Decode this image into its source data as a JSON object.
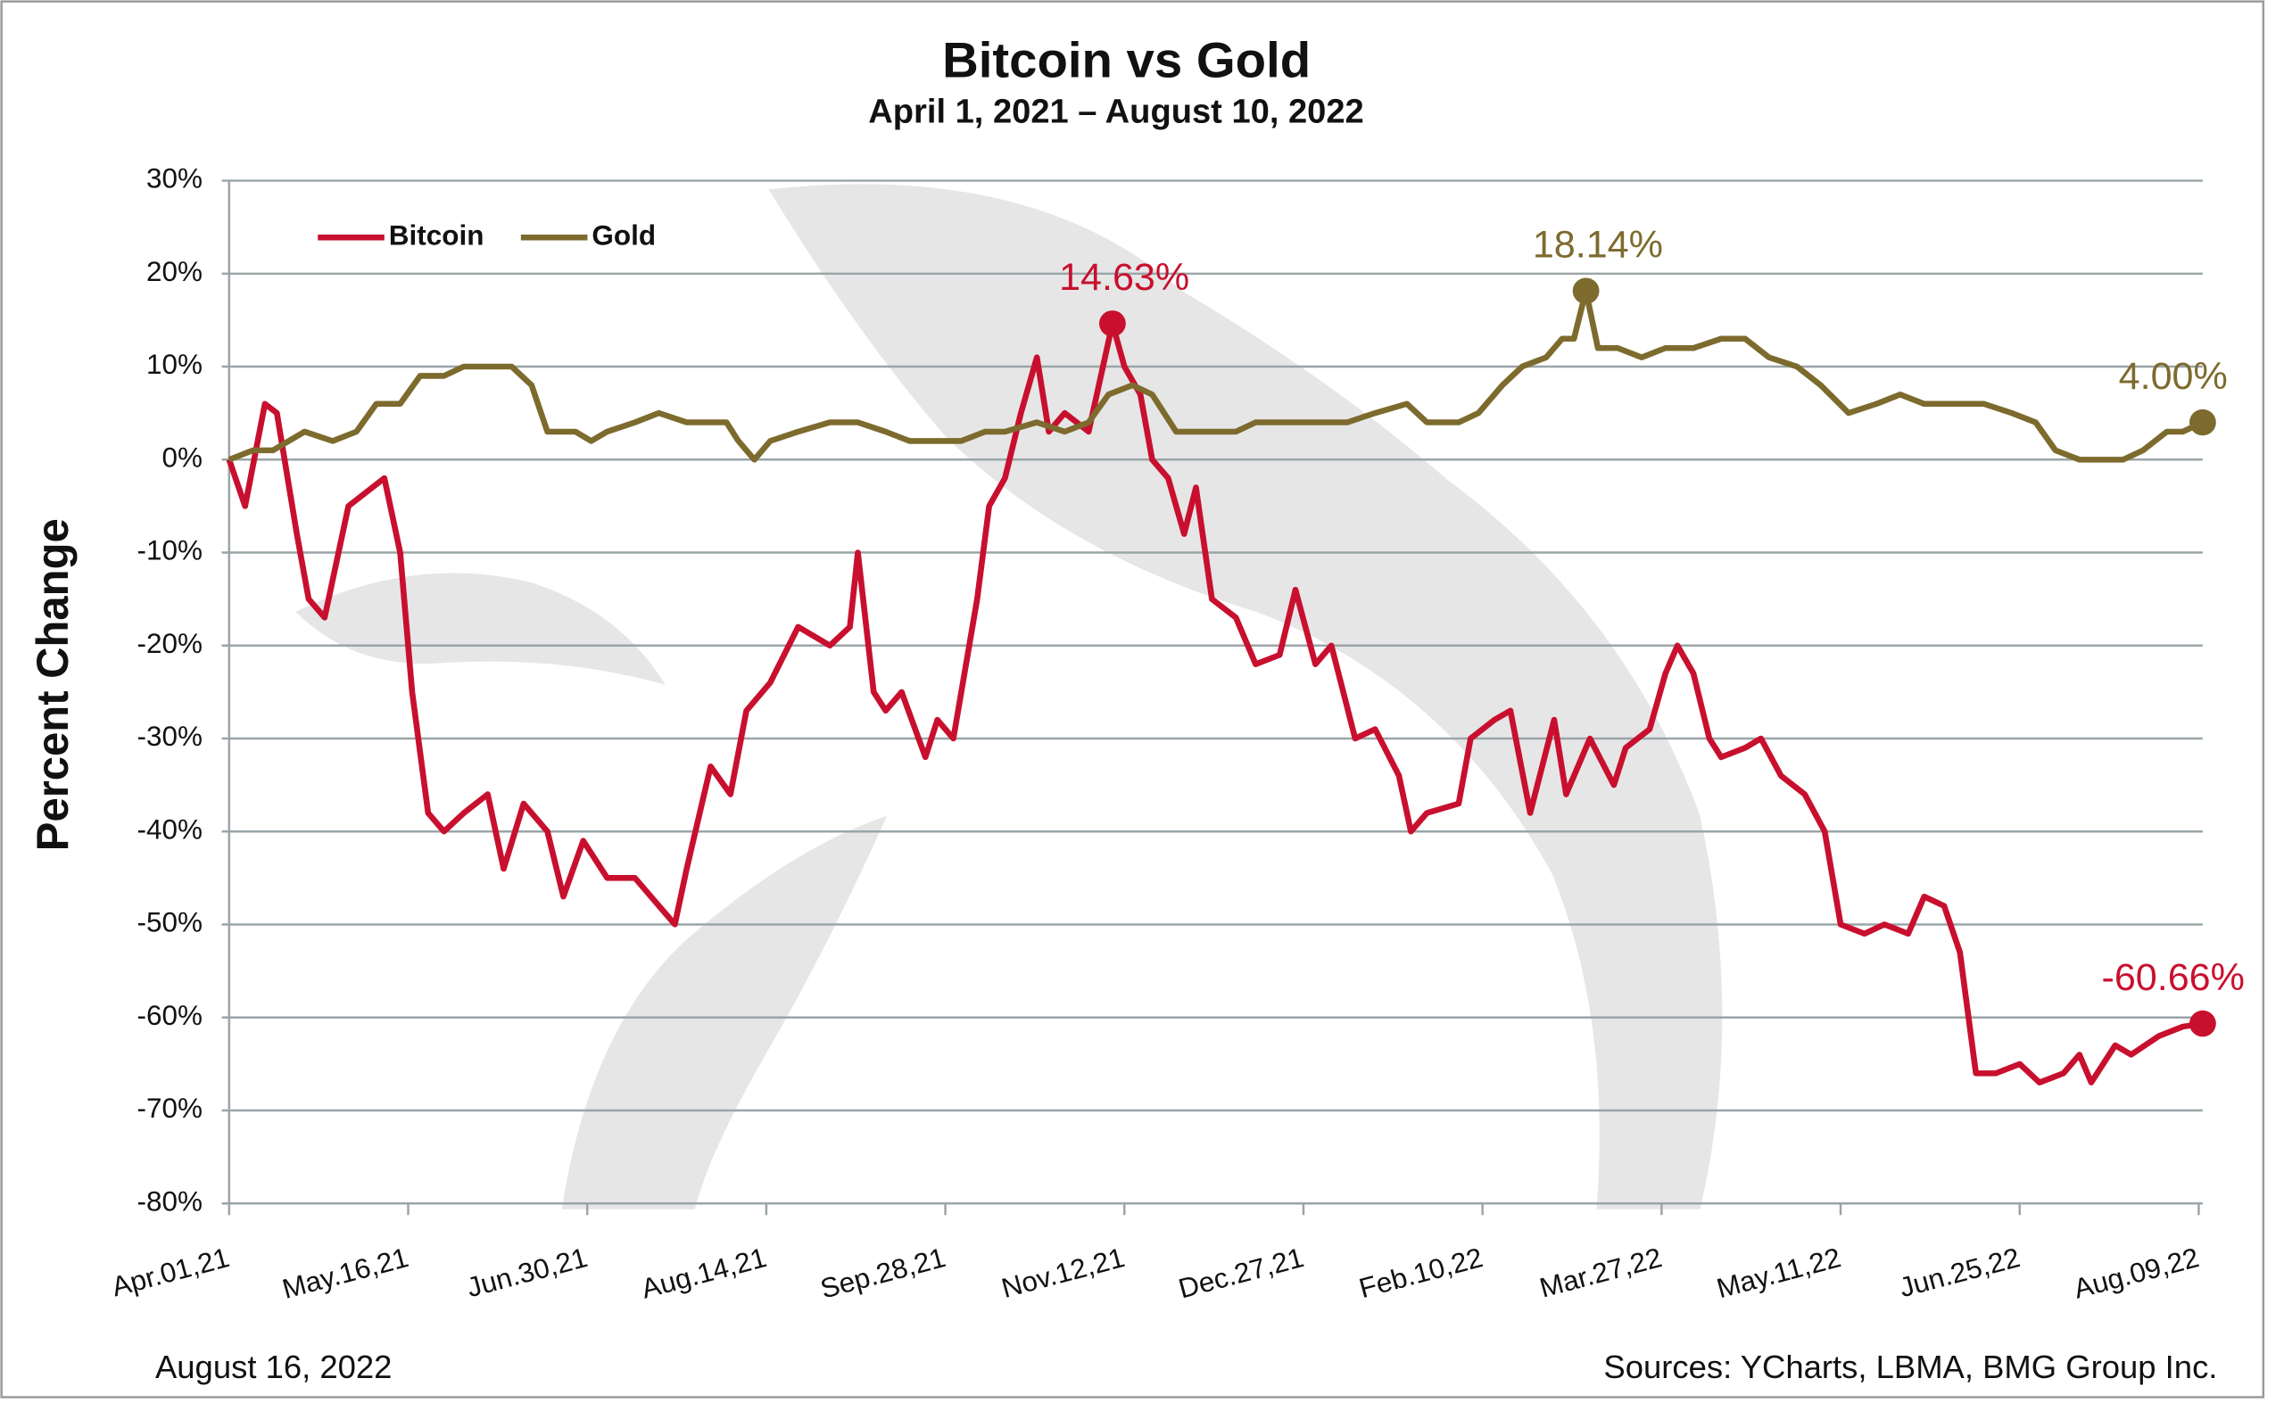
{
  "chart_data": {
    "type": "line",
    "title": "Bitcoin vs Gold",
    "subtitle": "April 1, 2021 – August 10, 2022",
    "ylabel": "Percent Change",
    "date": "August 16, 2022",
    "source": "Sources: YCharts, LBMA, BMG Group Inc.",
    "legend": "top-left",
    "grid": true,
    "xlim": [
      "2021-04-01",
      "2022-08-10"
    ],
    "xticks": [
      {
        "value": "2021-04-01",
        "label": "Apr.01,21"
      },
      {
        "value": "2021-05-16",
        "label": "May.16,21"
      },
      {
        "value": "2021-06-30",
        "label": "Jun.30,21"
      },
      {
        "value": "2021-08-14",
        "label": "Aug.14,21"
      },
      {
        "value": "2021-09-28",
        "label": "Sep.28,21"
      },
      {
        "value": "2021-11-12",
        "label": "Nov.12,21"
      },
      {
        "value": "2021-12-27",
        "label": "Dec.27,21"
      },
      {
        "value": "2022-02-10",
        "label": "Feb.10,22"
      },
      {
        "value": "2022-03-27",
        "label": "Mar.27,22"
      },
      {
        "value": "2022-05-11",
        "label": "May.11,22"
      },
      {
        "value": "2022-06-25",
        "label": "Jun.25,22"
      },
      {
        "value": "2022-08-09",
        "label": "Aug.09,22"
      }
    ],
    "ylim": [
      -80,
      30
    ],
    "yticks": [
      {
        "value": 30,
        "label": "30%"
      },
      {
        "value": 20,
        "label": "20%"
      },
      {
        "value": 10,
        "label": "10%"
      },
      {
        "value": 0,
        "label": "0%"
      },
      {
        "value": -10,
        "label": "-10%"
      },
      {
        "value": -20,
        "label": "-20%"
      },
      {
        "value": -30,
        "label": "-30%"
      },
      {
        "value": -40,
        "label": "-40%"
      },
      {
        "value": -50,
        "label": "-50%"
      },
      {
        "value": -60,
        "label": "-60%"
      },
      {
        "value": -70,
        "label": "-70%"
      },
      {
        "value": -80,
        "label": "-80%"
      }
    ],
    "series": [
      {
        "name": "Bitcoin",
        "color": "#c8102e",
        "x": [
          "2021-04-01",
          "2021-04-05",
          "2021-04-10",
          "2021-04-13",
          "2021-04-18",
          "2021-04-21",
          "2021-04-25",
          "2021-05-01",
          "2021-05-10",
          "2021-05-14",
          "2021-05-17",
          "2021-05-21",
          "2021-05-25",
          "2021-05-30",
          "2021-06-05",
          "2021-06-09",
          "2021-06-14",
          "2021-06-20",
          "2021-06-24",
          "2021-06-29",
          "2021-07-05",
          "2021-07-12",
          "2021-07-22",
          "2021-07-25",
          "2021-07-31",
          "2021-08-05",
          "2021-08-09",
          "2021-08-15",
          "2021-08-22",
          "2021-08-30",
          "2021-09-04",
          "2021-09-06",
          "2021-09-10",
          "2021-09-13",
          "2021-09-17",
          "2021-09-23",
          "2021-09-26",
          "2021-09-30",
          "2021-10-06",
          "2021-10-09",
          "2021-10-13",
          "2021-10-17",
          "2021-10-21",
          "2021-10-24",
          "2021-10-28",
          "2021-11-03",
          "2021-11-09",
          "2021-11-12",
          "2021-11-16",
          "2021-11-19",
          "2021-11-23",
          "2021-11-27",
          "2021-11-30",
          "2021-12-04",
          "2021-12-10",
          "2021-12-15",
          "2021-12-21",
          "2021-12-25",
          "2021-12-30",
          "2022-01-03",
          "2022-01-09",
          "2022-01-14",
          "2022-01-20",
          "2022-01-23",
          "2022-01-27",
          "2022-02-04",
          "2022-02-07",
          "2022-02-13",
          "2022-02-17",
          "2022-02-22",
          "2022-02-28",
          "2022-03-03",
          "2022-03-09",
          "2022-03-15",
          "2022-03-18",
          "2022-03-24",
          "2022-03-28",
          "2022-03-31",
          "2022-04-04",
          "2022-04-08",
          "2022-04-11",
          "2022-04-17",
          "2022-04-21",
          "2022-04-26",
          "2022-05-02",
          "2022-05-07",
          "2022-05-11",
          "2022-05-17",
          "2022-05-22",
          "2022-05-28",
          "2022-06-01",
          "2022-06-06",
          "2022-06-10",
          "2022-06-14",
          "2022-06-19",
          "2022-06-25",
          "2022-06-30",
          "2022-07-06",
          "2022-07-10",
          "2022-07-13",
          "2022-07-19",
          "2022-07-23",
          "2022-07-30",
          "2022-08-05",
          "2022-08-10"
        ],
        "values": [
          0,
          -5,
          6,
          5,
          -8,
          -15,
          -17,
          -5,
          -2,
          -10,
          -25,
          -38,
          -40,
          -38,
          -36,
          -44,
          -37,
          -40,
          -47,
          -41,
          -45,
          -45,
          -50,
          -44,
          -33,
          -36,
          -27,
          -24,
          -18,
          -20,
          -18,
          -10,
          -25,
          -27,
          -25,
          -32,
          -28,
          -30,
          -15,
          -5,
          -2,
          5,
          11,
          3,
          5,
          3,
          14.63,
          10,
          7,
          0,
          -2,
          -8,
          -3,
          -15,
          -17,
          -22,
          -21,
          -14,
          -22,
          -20,
          -30,
          -29,
          -34,
          -40,
          -38,
          -37,
          -30,
          -28,
          -27,
          -38,
          -28,
          -36,
          -30,
          -35,
          -31,
          -29,
          -23,
          -20,
          -23,
          -30,
          -32,
          -31,
          -30,
          -34,
          -36,
          -40,
          -50,
          -51,
          -50,
          -51,
          -47,
          -48,
          -53,
          -66,
          -66,
          -65,
          -67,
          -66,
          -64,
          -67,
          -63,
          -64,
          -62,
          -61,
          -60.66
        ],
        "value_labels": [
          null,
          null,
          null,
          null,
          null,
          null,
          null,
          null,
          null,
          null,
          null,
          null,
          null,
          null,
          null,
          null,
          null,
          null,
          null,
          null,
          null,
          null,
          null,
          null,
          null,
          null,
          null,
          null,
          null,
          null,
          null,
          null,
          null,
          null,
          null,
          null,
          null,
          null,
          null,
          null,
          null,
          null,
          null,
          null,
          null,
          null,
          "14.63%",
          null,
          null,
          null,
          null,
          null,
          null,
          null,
          null,
          null,
          null,
          null,
          null,
          null,
          null,
          null,
          null,
          null,
          null,
          null,
          null,
          null,
          null,
          null,
          null,
          null,
          null,
          null,
          null,
          null,
          null,
          null,
          null,
          null,
          null,
          null,
          null,
          null,
          null,
          null,
          null,
          null,
          null,
          null,
          null,
          null,
          null,
          null,
          null,
          null,
          null,
          null,
          null,
          null,
          null,
          null,
          null,
          null,
          "-60.66%"
        ]
      },
      {
        "name": "Gold",
        "color": "#7d6b2e",
        "x": [
          "2021-04-01",
          "2021-04-07",
          "2021-04-12",
          "2021-04-20",
          "2021-04-27",
          "2021-05-03",
          "2021-05-08",
          "2021-05-14",
          "2021-05-19",
          "2021-05-25",
          "2021-05-30",
          "2021-06-05",
          "2021-06-11",
          "2021-06-16",
          "2021-06-20",
          "2021-06-27",
          "2021-07-01",
          "2021-07-05",
          "2021-07-12",
          "2021-07-18",
          "2021-07-25",
          "2021-08-04",
          "2021-08-07",
          "2021-08-11",
          "2021-08-15",
          "2021-08-22",
          "2021-08-30",
          "2021-09-06",
          "2021-09-13",
          "2021-09-19",
          "2021-09-26",
          "2021-10-02",
          "2021-10-08",
          "2021-10-13",
          "2021-10-21",
          "2021-10-28",
          "2021-11-03",
          "2021-11-08",
          "2021-11-14",
          "2021-11-19",
          "2021-11-25",
          "2021-12-02",
          "2021-12-10",
          "2021-12-15",
          "2021-12-23",
          "2021-12-30",
          "2022-01-07",
          "2022-01-14",
          "2022-01-22",
          "2022-01-27",
          "2022-02-04",
          "2022-02-09",
          "2022-02-15",
          "2022-02-20",
          "2022-02-26",
          "2022-03-02",
          "2022-03-05",
          "2022-03-08",
          "2022-03-11",
          "2022-03-16",
          "2022-03-22",
          "2022-03-28",
          "2022-04-04",
          "2022-04-11",
          "2022-04-17",
          "2022-04-23",
          "2022-04-30",
          "2022-05-06",
          "2022-05-13",
          "2022-05-20",
          "2022-05-26",
          "2022-06-01",
          "2022-06-08",
          "2022-06-16",
          "2022-06-23",
          "2022-06-29",
          "2022-07-04",
          "2022-07-10",
          "2022-07-15",
          "2022-07-21",
          "2022-07-26",
          "2022-08-01",
          "2022-08-05",
          "2022-08-10"
        ],
        "values": [
          0,
          1,
          1,
          3,
          2,
          3,
          6,
          6,
          9,
          9,
          10,
          10,
          10,
          8,
          3,
          3,
          2,
          3,
          4,
          5,
          4,
          4,
          2,
          0,
          2,
          3,
          4,
          4,
          3,
          2,
          2,
          2,
          3,
          3,
          4,
          3,
          4,
          7,
          8,
          7,
          3,
          3,
          3,
          4,
          4,
          4,
          4,
          5,
          6,
          4,
          4,
          5,
          8,
          10,
          11,
          13,
          13,
          18.14,
          12,
          12,
          11,
          12,
          12,
          13,
          13,
          11,
          10,
          8,
          5,
          6,
          7,
          6,
          6,
          6,
          5,
          4,
          1,
          0,
          0,
          0,
          1,
          3,
          3,
          4
        ],
        "value_labels": [
          null,
          null,
          null,
          null,
          null,
          null,
          null,
          null,
          null,
          null,
          null,
          null,
          null,
          null,
          null,
          null,
          null,
          null,
          null,
          null,
          null,
          null,
          null,
          null,
          null,
          null,
          null,
          null,
          null,
          null,
          null,
          null,
          null,
          null,
          null,
          null,
          null,
          null,
          null,
          null,
          null,
          null,
          null,
          null,
          null,
          null,
          null,
          null,
          null,
          null,
          null,
          null,
          null,
          null,
          null,
          null,
          null,
          "18.14%",
          null,
          null,
          null,
          null,
          null,
          null,
          null,
          null,
          null,
          null,
          null,
          null,
          null,
          null,
          null,
          null,
          null,
          null,
          null,
          null,
          null,
          null,
          null,
          null,
          null,
          "4.00%"
        ]
      }
    ]
  }
}
